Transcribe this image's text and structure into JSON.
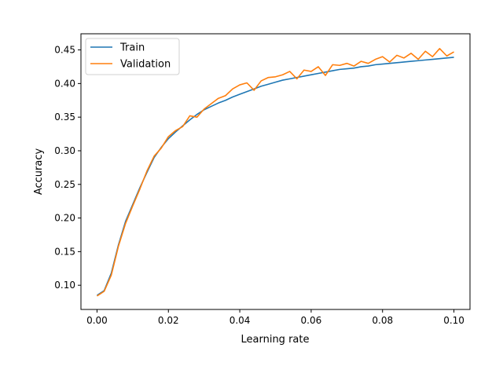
{
  "chart_data": {
    "type": "line",
    "title": "",
    "xlabel": "Learning rate",
    "ylabel": "Accuracy",
    "xlim": [
      -0.0045,
      0.1045
    ],
    "ylim": [
      0.064,
      0.474
    ],
    "xticks": [
      0.0,
      0.02,
      0.04,
      0.06,
      0.08,
      0.1
    ],
    "xtick_labels": [
      "0.00",
      "0.02",
      "0.04",
      "0.06",
      "0.08",
      "0.10"
    ],
    "yticks": [
      0.1,
      0.15,
      0.2,
      0.25,
      0.3,
      0.35,
      0.4,
      0.45
    ],
    "ytick_labels": [
      "0.10",
      "0.15",
      "0.20",
      "0.25",
      "0.30",
      "0.35",
      "0.40",
      "0.45"
    ],
    "grid": false,
    "legend_position": "top-left",
    "x": [
      0.0,
      0.002,
      0.004,
      0.006,
      0.008,
      0.01,
      0.012,
      0.014,
      0.016,
      0.018,
      0.02,
      0.022,
      0.024,
      0.026,
      0.028,
      0.03,
      0.032,
      0.034,
      0.036,
      0.038,
      0.04,
      0.042,
      0.044,
      0.046,
      0.048,
      0.05,
      0.052,
      0.054,
      0.056,
      0.058,
      0.06,
      0.062,
      0.064,
      0.066,
      0.068,
      0.07,
      0.072,
      0.074,
      0.076,
      0.078,
      0.08,
      0.082,
      0.084,
      0.086,
      0.088,
      0.09,
      0.092,
      0.094,
      0.096,
      0.098,
      0.1
    ],
    "series": [
      {
        "name": "Train",
        "color": "#1f77b4",
        "values": [
          0.085,
          0.092,
          0.118,
          0.16,
          0.195,
          0.22,
          0.245,
          0.268,
          0.29,
          0.305,
          0.318,
          0.328,
          0.337,
          0.346,
          0.354,
          0.361,
          0.366,
          0.371,
          0.375,
          0.38,
          0.384,
          0.388,
          0.392,
          0.396,
          0.399,
          0.402,
          0.405,
          0.407,
          0.409,
          0.411,
          0.413,
          0.415,
          0.417,
          0.419,
          0.421,
          0.422,
          0.423,
          0.425,
          0.426,
          0.428,
          0.429,
          0.43,
          0.431,
          0.432,
          0.433,
          0.434,
          0.435,
          0.436,
          0.437,
          0.438,
          0.439
        ]
      },
      {
        "name": "Validation",
        "color": "#ff7f0e",
        "values": [
          0.084,
          0.091,
          0.115,
          0.158,
          0.192,
          0.218,
          0.243,
          0.27,
          0.292,
          0.304,
          0.321,
          0.33,
          0.336,
          0.352,
          0.35,
          0.362,
          0.37,
          0.378,
          0.382,
          0.392,
          0.398,
          0.401,
          0.39,
          0.404,
          0.409,
          0.41,
          0.413,
          0.418,
          0.407,
          0.42,
          0.418,
          0.425,
          0.412,
          0.428,
          0.427,
          0.43,
          0.426,
          0.433,
          0.43,
          0.436,
          0.44,
          0.432,
          0.442,
          0.438,
          0.445,
          0.436,
          0.448,
          0.44,
          0.452,
          0.441,
          0.447
        ]
      }
    ]
  }
}
